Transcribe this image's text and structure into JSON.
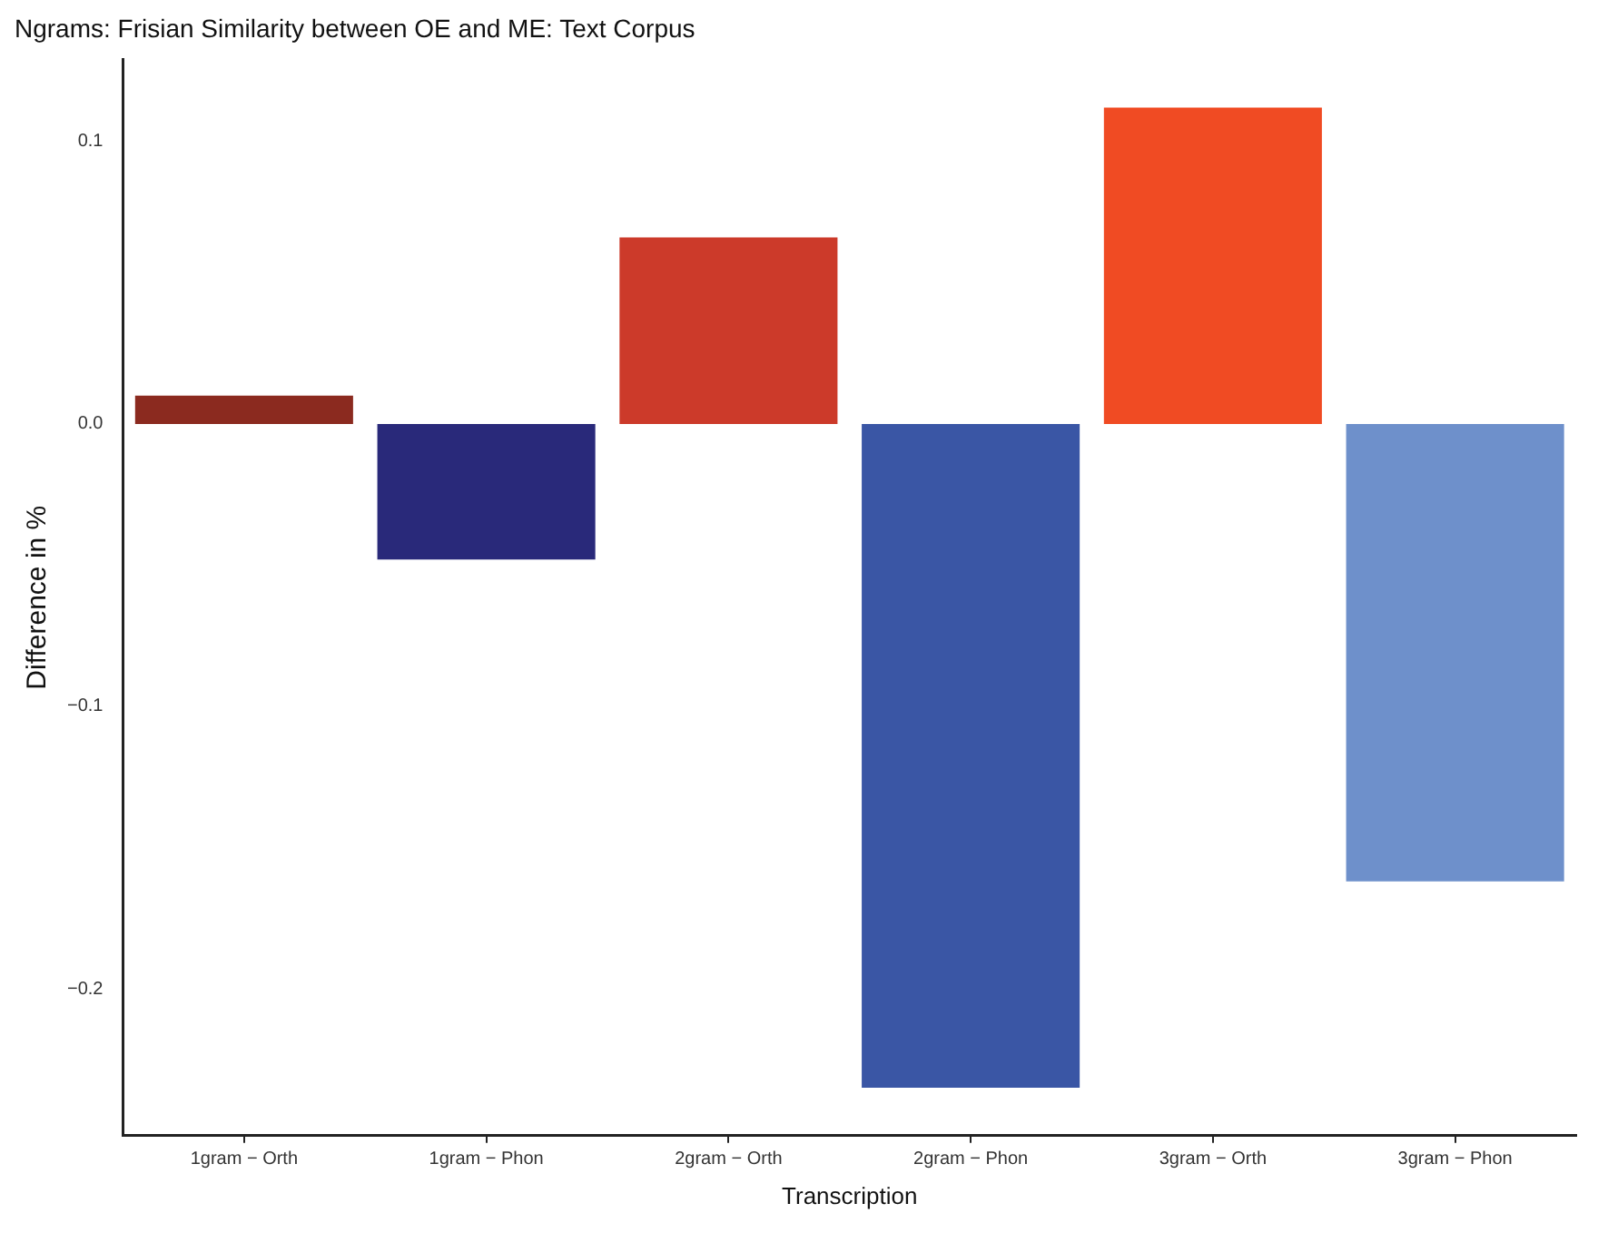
{
  "chart_data": {
    "type": "bar",
    "title": "Ngrams: Frisian Similarity between OE and ME: Text Corpus",
    "xlabel": "Transcription",
    "ylabel": "Difference in %",
    "categories": [
      "1gram − Orth",
      "1gram − Phon",
      "2gram − Orth",
      "2gram − Phon",
      "3gram − Orth",
      "3gram − Phon"
    ],
    "values": [
      0.01,
      -0.048,
      0.066,
      -0.235,
      0.112,
      -0.162
    ],
    "colors": [
      "#8b2a1f",
      "#29297a",
      "#cc3a2a",
      "#3a56a5",
      "#f04b23",
      "#6e90cb"
    ],
    "ylim": [
      -0.252,
      0.129
    ],
    "yticks": [
      {
        "value": -0.2,
        "label": "−0.2"
      },
      {
        "value": -0.1,
        "label": "−0.1"
      },
      {
        "value": 0,
        "label": "0.0"
      },
      {
        "value": 0.1,
        "label": "0.1"
      }
    ],
    "grid": false,
    "legend": false
  }
}
